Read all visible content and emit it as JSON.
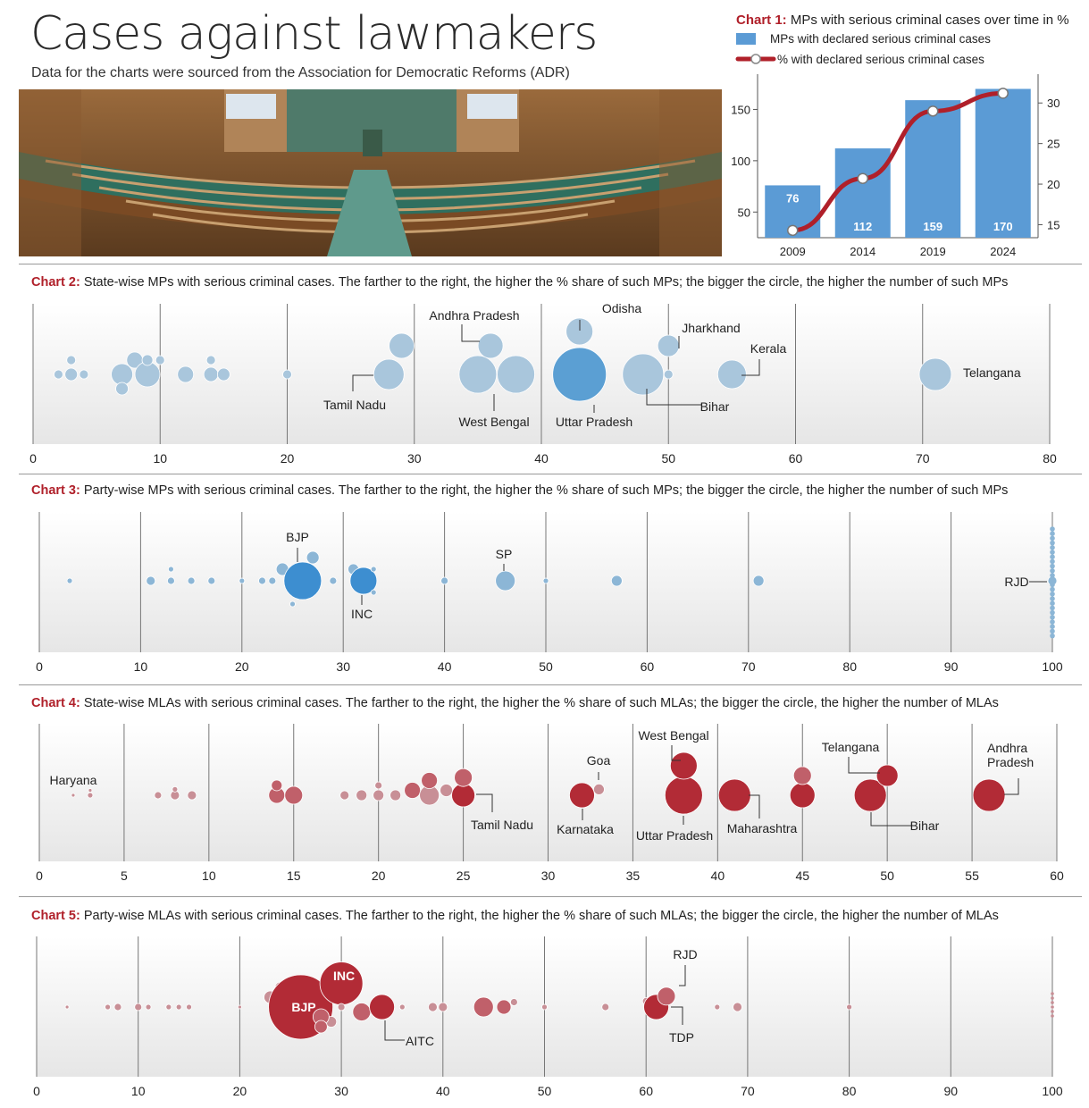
{
  "header": {
    "title": "Cases against lawmakers",
    "subtitle": "Data for the charts were sourced from the Association for Democratic Reforms (ADR)"
  },
  "colors": {
    "accent_red": "#b0202a",
    "mp_blue": "#5b9bd5",
    "mp_light": "#a9c6dc",
    "mla_red": "#b22b36",
    "mla_light": "#c88f96"
  },
  "chart_data": [
    {
      "id": "chart1",
      "type": "bar",
      "label": "Chart 1:",
      "title": "MPs with serious criminal cases over time in %",
      "legend": [
        "MPs with declared serious criminal cases",
        "% with declared serious criminal cases"
      ],
      "categories": [
        "2009",
        "2014",
        "2019",
        "2024"
      ],
      "values": [
        76,
        112,
        159,
        170
      ],
      "line_values": [
        14.3,
        20.7,
        29.0,
        31.2
      ],
      "left_ticks": [
        50,
        100,
        150
      ],
      "right_ticks": [
        15,
        20,
        25,
        30
      ]
    },
    {
      "id": "chart2",
      "type": "scatter",
      "label": "Chart 2:",
      "title": "State-wise MPs with serious criminal cases. The farther to the right, the higher the % share of such MPs; the bigger the circle, the higher the number of such MPs",
      "xlim": [
        0,
        80
      ],
      "ticks": [
        0,
        10,
        20,
        30,
        40,
        50,
        60,
        70,
        80
      ],
      "points": [
        {
          "x": 2,
          "y": 0,
          "r": 5
        },
        {
          "x": 3,
          "y": 0,
          "r": 7
        },
        {
          "x": 3,
          "y": 1,
          "r": 5
        },
        {
          "x": 4,
          "y": 0,
          "r": 5
        },
        {
          "x": 7,
          "y": 0,
          "r": 12
        },
        {
          "x": 7,
          "y": -1,
          "r": 7
        },
        {
          "x": 8,
          "y": 1,
          "r": 9
        },
        {
          "x": 9,
          "y": 0,
          "r": 14
        },
        {
          "x": 9,
          "y": 1,
          "r": 6
        },
        {
          "x": 10,
          "y": 1,
          "r": 5
        },
        {
          "x": 12,
          "y": 0,
          "r": 9
        },
        {
          "x": 14,
          "y": 0,
          "r": 8
        },
        {
          "x": 14,
          "y": 1,
          "r": 5
        },
        {
          "x": 15,
          "y": 0,
          "r": 7
        },
        {
          "x": 20,
          "y": 0,
          "r": 5
        },
        {
          "x": 28,
          "y": 0,
          "r": 17
        },
        {
          "x": 29,
          "y": 2,
          "r": 14
        },
        {
          "x": 35,
          "y": 0,
          "r": 21
        },
        {
          "x": 36,
          "y": 2,
          "r": 14
        },
        {
          "x": 38,
          "y": 0,
          "r": 21
        },
        {
          "x": 43,
          "y": 0,
          "r": 30,
          "dark": true
        },
        {
          "x": 43,
          "y": 3,
          "r": 15
        },
        {
          "x": 48,
          "y": 0,
          "r": 23
        },
        {
          "x": 50,
          "y": 0,
          "r": 5
        },
        {
          "x": 50,
          "y": 2,
          "r": 12
        },
        {
          "x": 55,
          "y": 0,
          "r": 16
        },
        {
          "x": 71,
          "y": 0,
          "r": 18
        }
      ],
      "annotations": [
        "Andhra Pradesh",
        "Odisha",
        "Jharkhand",
        "Kerala",
        "Tamil Nadu",
        "West Bengal",
        "Uttar Pradesh",
        "Bihar",
        "Telangana"
      ]
    },
    {
      "id": "chart3",
      "type": "scatter",
      "label": "Chart 3:",
      "title": "Party-wise MPs with serious criminal cases. The farther to the right, the higher the % share of such MPs; the bigger the circle, the higher the number of such MPs",
      "xlim": [
        0,
        100
      ],
      "ticks": [
        0,
        10,
        20,
        30,
        40,
        50,
        60,
        70,
        80,
        90,
        100
      ],
      "points": [
        {
          "x": 3,
          "y": 0,
          "r": 3
        },
        {
          "x": 11,
          "y": 0,
          "r": 5
        },
        {
          "x": 13,
          "y": 0,
          "r": 4
        },
        {
          "x": 13,
          "y": 1,
          "r": 3
        },
        {
          "x": 15,
          "y": 0,
          "r": 4
        },
        {
          "x": 17,
          "y": 0,
          "r": 4
        },
        {
          "x": 20,
          "y": 0,
          "r": 3
        },
        {
          "x": 22,
          "y": 0,
          "r": 4
        },
        {
          "x": 23,
          "y": 0,
          "r": 4
        },
        {
          "x": 24,
          "y": 1,
          "r": 7
        },
        {
          "x": 25,
          "y": 1,
          "r": 3
        },
        {
          "x": 25,
          "y": -2,
          "r": 3
        },
        {
          "x": 26,
          "y": 0,
          "r": 21,
          "dark": true
        },
        {
          "x": 27,
          "y": 2,
          "r": 7
        },
        {
          "x": 29,
          "y": 0,
          "r": 4
        },
        {
          "x": 31,
          "y": 1,
          "r": 6
        },
        {
          "x": 32,
          "y": 0,
          "r": 15,
          "dark": true
        },
        {
          "x": 33,
          "y": 1,
          "r": 3
        },
        {
          "x": 33,
          "y": -1,
          "r": 3
        },
        {
          "x": 40,
          "y": 0,
          "r": 4
        },
        {
          "x": 46,
          "y": 0,
          "r": 11
        },
        {
          "x": 50,
          "y": 0,
          "r": 3
        },
        {
          "x": 57,
          "y": 0,
          "r": 6
        },
        {
          "x": 71,
          "y": 0,
          "r": 6
        },
        {
          "x": 100,
          "y": 0,
          "r": 5
        }
      ],
      "annotations": [
        "BJP",
        "INC",
        "SP",
        "RJD"
      ]
    },
    {
      "id": "chart4",
      "type": "scatter",
      "label": "Chart 4:",
      "title": "State-wise MLAs with serious criminal cases. The farther to the right, the higher the % share of such MLAs; the bigger the circle, the higher the number of MLAs",
      "xlim": [
        0,
        60
      ],
      "ticks": [
        0,
        5,
        10,
        15,
        20,
        25,
        30,
        35,
        40,
        45,
        50,
        55,
        60
      ],
      "points": [
        {
          "x": 2,
          "y": 0,
          "r": 2,
          "light": true
        },
        {
          "x": 3,
          "y": 0,
          "r": 3,
          "light": true
        },
        {
          "x": 3,
          "y": 0.5,
          "r": 2,
          "light": true
        },
        {
          "x": 7,
          "y": 0,
          "r": 4,
          "light": true
        },
        {
          "x": 8,
          "y": 0,
          "r": 5,
          "light": true
        },
        {
          "x": 8,
          "y": 0.6,
          "r": 3,
          "light": true
        },
        {
          "x": 9,
          "y": 0,
          "r": 5,
          "light": true
        },
        {
          "x": 14,
          "y": 0,
          "r": 9
        },
        {
          "x": 14,
          "y": 1,
          "r": 6
        },
        {
          "x": 15,
          "y": 0,
          "r": 10
        },
        {
          "x": 18,
          "y": 0,
          "r": 5,
          "light": true
        },
        {
          "x": 19,
          "y": 0,
          "r": 6,
          "light": true
        },
        {
          "x": 20,
          "y": 0,
          "r": 6,
          "light": true
        },
        {
          "x": 20,
          "y": 1,
          "r": 4,
          "light": true
        },
        {
          "x": 21,
          "y": 0,
          "r": 6,
          "light": true
        },
        {
          "x": 22,
          "y": 0.5,
          "r": 9
        },
        {
          "x": 23,
          "y": 0,
          "r": 11,
          "light": true
        },
        {
          "x": 23,
          "y": 1.5,
          "r": 9
        },
        {
          "x": 24,
          "y": 0.5,
          "r": 7,
          "light": true
        },
        {
          "x": 25,
          "y": 0,
          "r": 13,
          "dark": true
        },
        {
          "x": 25,
          "y": 1.8,
          "r": 10
        },
        {
          "x": 32,
          "y": 0,
          "r": 14,
          "dark": true
        },
        {
          "x": 33,
          "y": 0.6,
          "r": 6,
          "light": true
        },
        {
          "x": 38,
          "y": 0,
          "r": 21,
          "dark": true
        },
        {
          "x": 38,
          "y": 3,
          "r": 15,
          "dark": true
        },
        {
          "x": 41,
          "y": 0,
          "r": 18,
          "dark": true
        },
        {
          "x": 45,
          "y": 0,
          "r": 14,
          "dark": true
        },
        {
          "x": 45,
          "y": 2,
          "r": 10
        },
        {
          "x": 49,
          "y": 0,
          "r": 18,
          "dark": true
        },
        {
          "x": 50,
          "y": 2,
          "r": 12,
          "dark": true
        },
        {
          "x": 56,
          "y": 0,
          "r": 18,
          "dark": true
        }
      ],
      "annotations": [
        "Haryana",
        "Goa",
        "West Bengal",
        "Telangana",
        "Andhra Pradesh",
        "Tamil Nadu",
        "Karnataka",
        "Uttar Pradesh",
        "Maharashtra",
        "Bihar"
      ]
    },
    {
      "id": "chart5",
      "type": "scatter",
      "label": "Chart 5:",
      "title": "Party-wise MLAs with serious criminal cases. The farther to the right, the higher the % share of such MLAs; the bigger the circle, the higher the number of MLAs",
      "xlim": [
        0,
        100
      ],
      "ticks": [
        0,
        10,
        20,
        30,
        40,
        50,
        60,
        70,
        80,
        90,
        100
      ],
      "points": [
        {
          "x": 3,
          "y": 0,
          "r": 2,
          "light": true
        },
        {
          "x": 7,
          "y": 0,
          "r": 3,
          "light": true
        },
        {
          "x": 8,
          "y": 0,
          "r": 4,
          "light": true
        },
        {
          "x": 10,
          "y": 0,
          "r": 4,
          "light": true
        },
        {
          "x": 11,
          "y": 0,
          "r": 3,
          "light": true
        },
        {
          "x": 13,
          "y": 0,
          "r": 3,
          "light": true
        },
        {
          "x": 14,
          "y": 0,
          "r": 3,
          "light": true
        },
        {
          "x": 15,
          "y": 0,
          "r": 3,
          "light": true
        },
        {
          "x": 20,
          "y": 0,
          "r": 2,
          "light": true
        },
        {
          "x": 23,
          "y": 1,
          "r": 7,
          "light": true
        },
        {
          "x": 24,
          "y": 2,
          "r": 6,
          "light": true
        },
        {
          "x": 26,
          "y": 2.2,
          "r": 6,
          "light": true
        },
        {
          "x": 26,
          "y": 0,
          "r": 36,
          "dark": true
        },
        {
          "x": 30,
          "y": 2.4,
          "r": 24,
          "dark": true
        },
        {
          "x": 30,
          "y": 0,
          "r": 4,
          "light": true
        },
        {
          "x": 29,
          "y": -1.5,
          "r": 6,
          "light": true
        },
        {
          "x": 28,
          "y": -1,
          "r": 9
        },
        {
          "x": 28,
          "y": -2,
          "r": 7
        },
        {
          "x": 32,
          "y": -0.5,
          "r": 10
        },
        {
          "x": 34,
          "y": 0,
          "r": 14,
          "dark": true
        },
        {
          "x": 36,
          "y": 0,
          "r": 3,
          "light": true
        },
        {
          "x": 39,
          "y": 0,
          "r": 5,
          "light": true
        },
        {
          "x": 40,
          "y": 0,
          "r": 5,
          "light": true
        },
        {
          "x": 44,
          "y": 0,
          "r": 11
        },
        {
          "x": 46,
          "y": 0,
          "r": 8
        },
        {
          "x": 47,
          "y": 0.5,
          "r": 4,
          "light": true
        },
        {
          "x": 50,
          "y": 0,
          "r": 3,
          "light": true
        },
        {
          "x": 56,
          "y": 0,
          "r": 4,
          "light": true
        },
        {
          "x": 60,
          "y": 0.6,
          "r": 4,
          "light": true
        },
        {
          "x": 61,
          "y": 0,
          "r": 14,
          "dark": true
        },
        {
          "x": 62,
          "y": 1.1,
          "r": 10
        },
        {
          "x": 67,
          "y": 0,
          "r": 3,
          "light": true
        },
        {
          "x": 69,
          "y": 0,
          "r": 5,
          "light": true
        },
        {
          "x": 80,
          "y": 0,
          "r": 3,
          "light": true
        },
        {
          "x": 100,
          "y": 0,
          "r": 2,
          "light": true
        }
      ],
      "point_labels": [
        "BJP",
        "INC"
      ],
      "annotations": [
        "RJD",
        "AITC",
        "TDP"
      ]
    }
  ]
}
